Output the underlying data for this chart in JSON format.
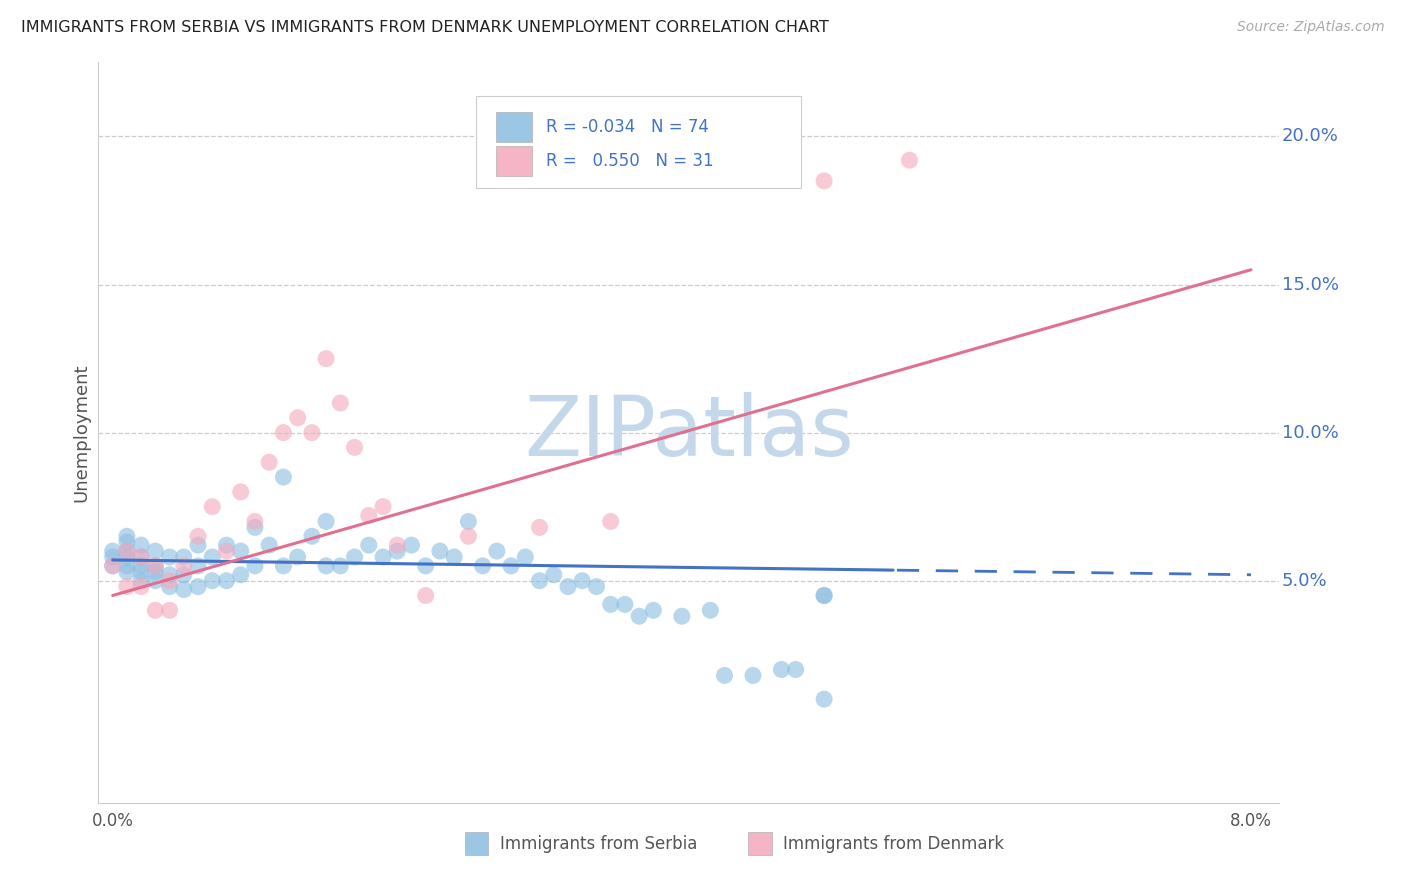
{
  "title": "IMMIGRANTS FROM SERBIA VS IMMIGRANTS FROM DENMARK UNEMPLOYMENT CORRELATION CHART",
  "source": "Source: ZipAtlas.com",
  "ylabel": "Unemployment",
  "y_ticks": [
    0.05,
    0.1,
    0.15,
    0.2
  ],
  "y_tick_labels": [
    "5.0%",
    "10.0%",
    "15.0%",
    "20.0%"
  ],
  "x_range": [
    0.0,
    0.08
  ],
  "y_range": [
    0.0,
    0.22
  ],
  "serbia_color": "#8bbde0",
  "denmark_color": "#f4a8bc",
  "serbia_R": -0.034,
  "serbia_N": 74,
  "denmark_R": 0.55,
  "denmark_N": 31,
  "watermark": "ZIPatlas",
  "watermark_color": "#c5d8eb",
  "legend_text_color": "#4472c4",
  "ytick_color": "#4472c4",
  "serbia_line_color": "#4472c4",
  "denmark_line_color": "#e07090",
  "serbia_x": [
    0.0,
    0.0,
    0.0,
    0.001,
    0.001,
    0.001,
    0.001,
    0.001,
    0.001,
    0.002,
    0.002,
    0.002,
    0.002,
    0.002,
    0.003,
    0.003,
    0.003,
    0.003,
    0.004,
    0.004,
    0.004,
    0.005,
    0.005,
    0.005,
    0.006,
    0.006,
    0.006,
    0.007,
    0.007,
    0.008,
    0.008,
    0.009,
    0.009,
    0.01,
    0.01,
    0.011,
    0.012,
    0.012,
    0.013,
    0.014,
    0.015,
    0.015,
    0.016,
    0.017,
    0.018,
    0.019,
    0.02,
    0.021,
    0.022,
    0.023,
    0.024,
    0.025,
    0.026,
    0.027,
    0.028,
    0.029,
    0.03,
    0.031,
    0.032,
    0.033,
    0.034,
    0.035,
    0.036,
    0.037,
    0.038,
    0.04,
    0.042,
    0.043,
    0.045,
    0.047,
    0.048,
    0.05,
    0.05,
    0.05
  ],
  "serbia_y": [
    0.055,
    0.058,
    0.06,
    0.053,
    0.055,
    0.058,
    0.06,
    0.063,
    0.065,
    0.05,
    0.053,
    0.055,
    0.058,
    0.062,
    0.05,
    0.053,
    0.055,
    0.06,
    0.048,
    0.052,
    0.058,
    0.047,
    0.052,
    0.058,
    0.048,
    0.055,
    0.062,
    0.05,
    0.058,
    0.05,
    0.062,
    0.052,
    0.06,
    0.055,
    0.068,
    0.062,
    0.055,
    0.085,
    0.058,
    0.065,
    0.055,
    0.07,
    0.055,
    0.058,
    0.062,
    0.058,
    0.06,
    0.062,
    0.055,
    0.06,
    0.058,
    0.07,
    0.055,
    0.06,
    0.055,
    0.058,
    0.05,
    0.052,
    0.048,
    0.05,
    0.048,
    0.042,
    0.042,
    0.038,
    0.04,
    0.038,
    0.04,
    0.018,
    0.018,
    0.02,
    0.02,
    0.045,
    0.045,
    0.01
  ],
  "denmark_x": [
    0.0,
    0.001,
    0.001,
    0.002,
    0.002,
    0.003,
    0.003,
    0.004,
    0.004,
    0.005,
    0.006,
    0.007,
    0.008,
    0.009,
    0.01,
    0.011,
    0.012,
    0.013,
    0.014,
    0.015,
    0.016,
    0.017,
    0.018,
    0.019,
    0.02,
    0.022,
    0.025,
    0.03,
    0.035,
    0.05,
    0.055
  ],
  "denmark_y": [
    0.055,
    0.06,
    0.048,
    0.058,
    0.048,
    0.055,
    0.04,
    0.05,
    0.04,
    0.055,
    0.065,
    0.075,
    0.06,
    0.08,
    0.07,
    0.09,
    0.1,
    0.105,
    0.1,
    0.125,
    0.11,
    0.095,
    0.072,
    0.075,
    0.062,
    0.045,
    0.065,
    0.068,
    0.07,
    0.055,
    0.185
  ]
}
